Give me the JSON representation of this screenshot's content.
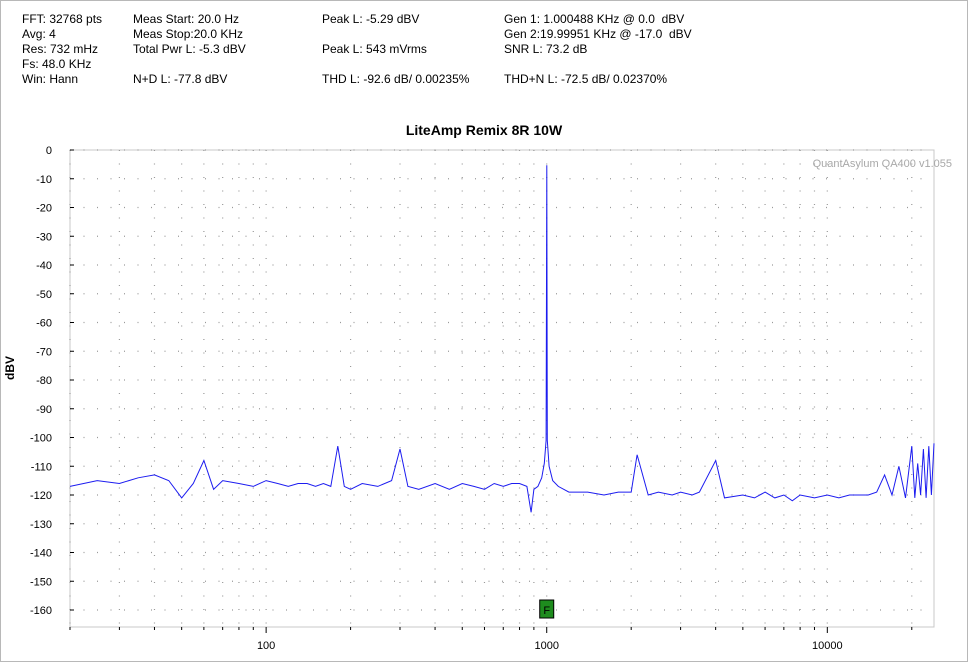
{
  "stats": {
    "fft": "FFT: 32768 pts",
    "avg": "Avg: 4",
    "res": "Res: 732 mHz",
    "fs": "Fs: 48.0 KHz",
    "win": "Win: Hann",
    "meas_start": "Meas Start: 20.0 Hz",
    "meas_stop": "Meas Stop:20.0 KHz",
    "total_pwr": "Total Pwr L: -5.3 dBV",
    "nd": "N+D L: -77.8 dBV",
    "peak_l_dbv": "Peak L: -5.29 dBV",
    "peak_l_mv": "Peak L: 543 mVrms",
    "thd": "THD L: -92.6 dB/ 0.00235%",
    "gen1": "Gen 1: 1.000488 KHz @ 0.0  dBV",
    "gen2": "Gen 2:19.99951 KHz @ -17.0  dBV",
    "snr": "SNR L: 73.2 dB",
    "thdn": "THD+N L: -72.5 dB/ 0.02370%"
  },
  "watermark": "QuantAsylum QA400 v1.055",
  "marker_label": "F",
  "colors": {
    "trace": "#1c1cf0",
    "marker": "#1e8c1e",
    "grid": "#9a9a9a"
  },
  "chart_data": {
    "type": "line",
    "title": "LiteAmp Remix 8R 10W",
    "xlabel": "",
    "ylabel": "dBV",
    "xscale": "log",
    "xlim": [
      20,
      24000
    ],
    "ylim": [
      -165,
      0
    ],
    "y_ticks": [
      0,
      -10,
      -20,
      -30,
      -40,
      -50,
      -60,
      -70,
      -80,
      -90,
      -100,
      -110,
      -120,
      -130,
      -140,
      -150,
      -160
    ],
    "x_ticks": [
      100,
      1000,
      10000
    ],
    "x_tick_labels": [
      "100",
      "1000",
      "10000"
    ],
    "grid": true,
    "marker_x": 1000,
    "fundamental_hz": 1000.488,
    "fundamental_dbv": -5.3,
    "series": [
      {
        "points": [
          [
            20,
            -117
          ],
          [
            25,
            -115
          ],
          [
            30,
            -116
          ],
          [
            35,
            -114
          ],
          [
            40,
            -113
          ],
          [
            45,
            -115
          ],
          [
            50,
            -121
          ],
          [
            55,
            -116
          ],
          [
            60,
            -108
          ],
          [
            65,
            -118
          ],
          [
            70,
            -115
          ],
          [
            80,
            -116
          ],
          [
            90,
            -117
          ],
          [
            100,
            -115
          ],
          [
            110,
            -116
          ],
          [
            120,
            -117
          ],
          [
            130,
            -116
          ],
          [
            140,
            -116
          ],
          [
            150,
            -117
          ],
          [
            160,
            -116
          ],
          [
            170,
            -117
          ],
          [
            180,
            -103
          ],
          [
            190,
            -117
          ],
          [
            200,
            -118
          ],
          [
            220,
            -116
          ],
          [
            250,
            -117
          ],
          [
            280,
            -115
          ],
          [
            300,
            -104
          ],
          [
            320,
            -117
          ],
          [
            350,
            -118
          ],
          [
            400,
            -116
          ],
          [
            450,
            -118
          ],
          [
            500,
            -116
          ],
          [
            550,
            -117
          ],
          [
            600,
            -118
          ],
          [
            650,
            -116
          ],
          [
            700,
            -117
          ],
          [
            750,
            -116
          ],
          [
            800,
            -116
          ],
          [
            850,
            -117
          ],
          [
            880,
            -126
          ],
          [
            900,
            -118
          ],
          [
            930,
            -117
          ],
          [
            960,
            -114
          ],
          [
            980,
            -109
          ],
          [
            995,
            -101
          ],
          [
            1000.5,
            -5.3
          ],
          [
            1005,
            -101
          ],
          [
            1020,
            -110
          ],
          [
            1050,
            -115
          ],
          [
            1100,
            -117
          ],
          [
            1200,
            -119
          ],
          [
            1400,
            -119
          ],
          [
            1600,
            -120
          ],
          [
            1800,
            -119
          ],
          [
            2000,
            -119
          ],
          [
            2100,
            -106
          ],
          [
            2300,
            -120
          ],
          [
            2500,
            -119
          ],
          [
            2800,
            -120
          ],
          [
            3000,
            -119
          ],
          [
            3300,
            -120
          ],
          [
            3500,
            -119
          ],
          [
            4000,
            -108
          ],
          [
            4300,
            -121
          ],
          [
            5000,
            -120
          ],
          [
            5500,
            -121
          ],
          [
            6000,
            -119
          ],
          [
            6500,
            -121
          ],
          [
            7000,
            -120
          ],
          [
            7500,
            -122
          ],
          [
            8000,
            -120
          ],
          [
            9000,
            -121
          ],
          [
            10000,
            -120
          ],
          [
            11000,
            -121
          ],
          [
            12000,
            -120
          ],
          [
            13000,
            -120
          ],
          [
            14000,
            -120
          ],
          [
            15000,
            -119
          ],
          [
            16000,
            -113
          ],
          [
            17000,
            -120
          ],
          [
            18000,
            -110
          ],
          [
            19000,
            -121
          ],
          [
            20000,
            -103
          ],
          [
            20500,
            -121
          ],
          [
            21000,
            -109
          ],
          [
            21500,
            -120
          ],
          [
            22000,
            -104
          ],
          [
            22500,
            -121
          ],
          [
            23000,
            -103
          ],
          [
            23500,
            -120
          ],
          [
            24000,
            -102
          ]
        ]
      }
    ]
  }
}
